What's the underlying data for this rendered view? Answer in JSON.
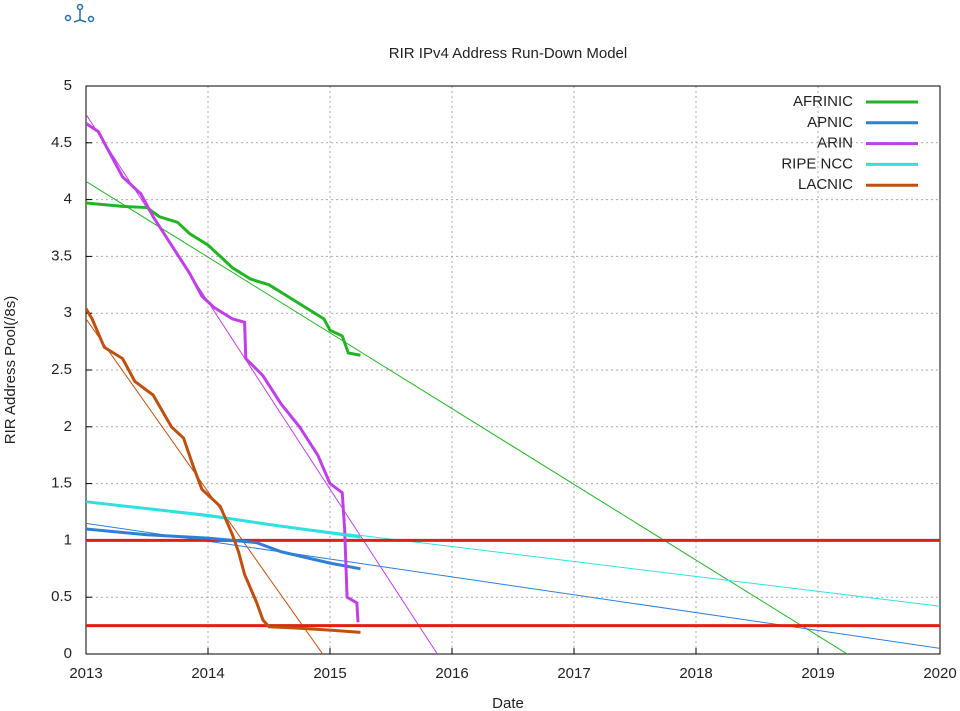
{
  "chart_data": {
    "type": "line",
    "title": "RIR IPv4 Address Run-Down Model",
    "x_label": "Date",
    "y_label": "RIR Address Pool(/8s)",
    "xlim": [
      2013,
      2020
    ],
    "xticks": [
      2013,
      2014,
      2015,
      2016,
      2017,
      2018,
      2019,
      2020
    ],
    "ylim": [
      0,
      5
    ],
    "yticks": [
      0,
      0.5,
      1,
      1.5,
      2,
      2.5,
      3,
      3.5,
      4,
      4.5,
      5
    ],
    "grid": true,
    "legend": "top-right",
    "series": [
      {
        "name": "AFRINIC",
        "color": "#22b422",
        "x": [
          2013,
          2013.2,
          2013.3,
          2013.5,
          2013.6,
          2013.75,
          2013.85,
          2014.0,
          2014.1,
          2014.2,
          2014.35,
          2014.5,
          2014.65,
          2014.8,
          2014.95,
          2015.0,
          2015.1,
          2015.15,
          2015.25
        ],
        "values": [
          3.97,
          3.95,
          3.94,
          3.93,
          3.85,
          3.8,
          3.7,
          3.6,
          3.5,
          3.4,
          3.3,
          3.25,
          3.15,
          3.05,
          2.95,
          2.85,
          2.8,
          2.65,
          2.63
        ]
      },
      {
        "name": "APNIC",
        "color": "#2f7fd6",
        "x": [
          2013,
          2013.5,
          2014,
          2014.4,
          2014.6,
          2015,
          2015.25
        ],
        "values": [
          1.1,
          1.05,
          1.02,
          0.98,
          0.9,
          0.8,
          0.75
        ]
      },
      {
        "name": "ARIN",
        "color": "#c040e8",
        "x": [
          2013,
          2013.1,
          2013.2,
          2013.3,
          2013.45,
          2013.55,
          2013.7,
          2013.85,
          2013.95,
          2014.05,
          2014.2,
          2014.3,
          2014.31,
          2014.45,
          2014.6,
          2014.75,
          2014.9,
          2015.0,
          2015.1,
          2015.12,
          2015.14,
          2015.22,
          2015.23
        ],
        "values": [
          4.67,
          4.6,
          4.4,
          4.2,
          4.05,
          3.85,
          3.6,
          3.35,
          3.15,
          3.05,
          2.95,
          2.92,
          2.6,
          2.45,
          2.2,
          2.0,
          1.75,
          1.5,
          1.42,
          1.1,
          0.5,
          0.45,
          0.28
        ]
      },
      {
        "name": "RIPE NCC",
        "color": "#30e0e0",
        "x": [
          2013,
          2014,
          2014.5,
          2015.25
        ],
        "values": [
          1.34,
          1.22,
          1.14,
          1.03
        ]
      },
      {
        "name": "LACNIC",
        "color": "#c05010",
        "x": [
          2013,
          2013.05,
          2013.15,
          2013.3,
          2013.4,
          2013.55,
          2013.7,
          2013.8,
          2013.88,
          2013.95,
          2014.1,
          2014.2,
          2014.25,
          2014.3,
          2014.4,
          2014.45,
          2014.5,
          2014.7,
          2015,
          2015.25
        ],
        "values": [
          3.04,
          2.95,
          2.7,
          2.6,
          2.4,
          2.28,
          2.0,
          1.9,
          1.65,
          1.45,
          1.3,
          1.05,
          0.9,
          0.7,
          0.45,
          0.3,
          0.24,
          0.23,
          0.21,
          0.19
        ]
      }
    ],
    "trend_lines": [
      {
        "color": "#22b422",
        "x": [
          2013,
          2019.24
        ],
        "values": [
          4.16,
          0
        ]
      },
      {
        "color": "#2f7fd6",
        "x": [
          2013,
          2020
        ],
        "values": [
          1.15,
          0.05
        ]
      },
      {
        "color": "#c040e8",
        "x": [
          2013,
          2015.88
        ],
        "values": [
          4.75,
          0
        ]
      },
      {
        "color": "#30e0e0",
        "x": [
          2013,
          2020
        ],
        "values": [
          1.34,
          0.42
        ]
      },
      {
        "color": "#c05010",
        "x": [
          2013,
          2014.94
        ],
        "values": [
          2.95,
          0
        ]
      }
    ],
    "hlines": [
      {
        "value": 1,
        "color": "#e02010"
      },
      {
        "value": 0.25,
        "color": "#e02010"
      }
    ]
  }
}
